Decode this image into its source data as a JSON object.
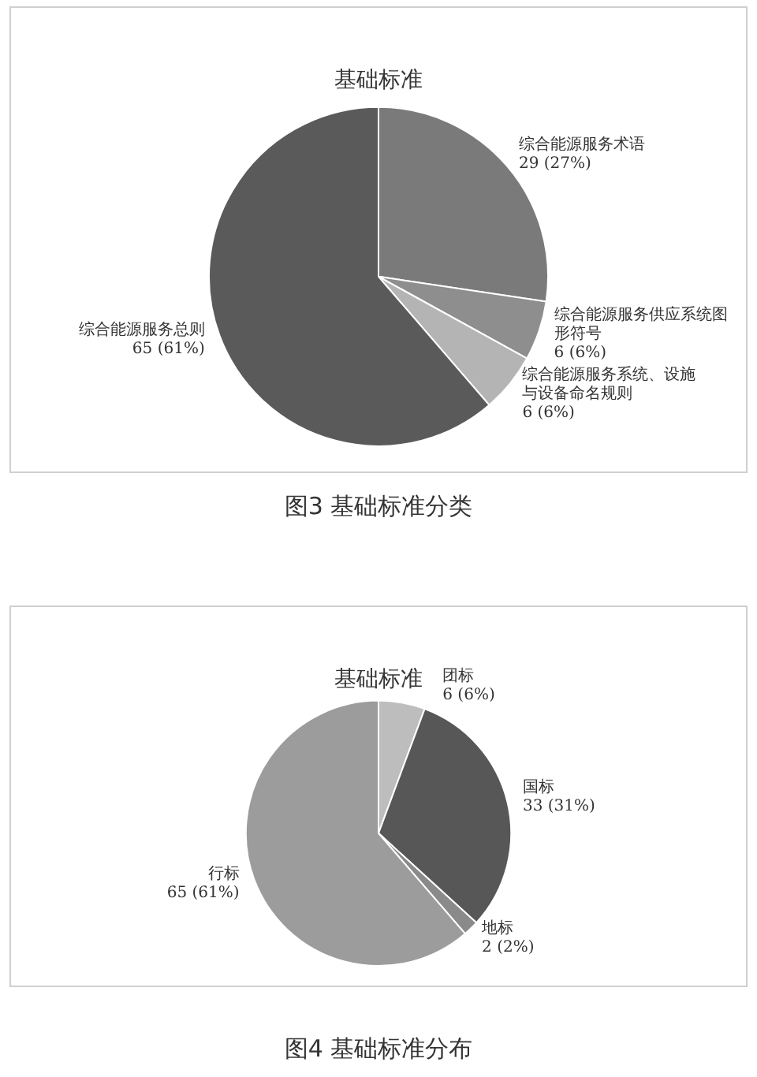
{
  "chart_data": [
    {
      "type": "pie",
      "title": "基础标准",
      "categories": [
        "综合能源服务术语",
        "综合能源服务供应系统图形符号",
        "综合能源服务系统、设施与设备命名规则",
        "综合能源服务总则"
      ],
      "values": [
        29,
        6,
        6,
        65
      ],
      "value_labels": [
        "29 (27%)",
        "6 (6%)",
        "6 (6%)",
        "65 (61%)"
      ],
      "colors": [
        "#7a7a7a",
        "#8e8e8e",
        "#b4b4b4",
        "#5a5a5a"
      ],
      "annotations": [
        "图3 基础标准分类"
      ]
    },
    {
      "type": "pie",
      "title": "基础标准",
      "categories": [
        "团标",
        "国标",
        "地标",
        "行标"
      ],
      "values": [
        6,
        33,
        2,
        65
      ],
      "value_labels": [
        "6 (6%)",
        "33 (31%)",
        "2 (2%)",
        "65 (61%)"
      ],
      "colors": [
        "#bdbdbd",
        "#575757",
        "#8a8a8a",
        "#9c9c9c"
      ],
      "annotations": [
        "图4 基础标准分布"
      ]
    }
  ]
}
